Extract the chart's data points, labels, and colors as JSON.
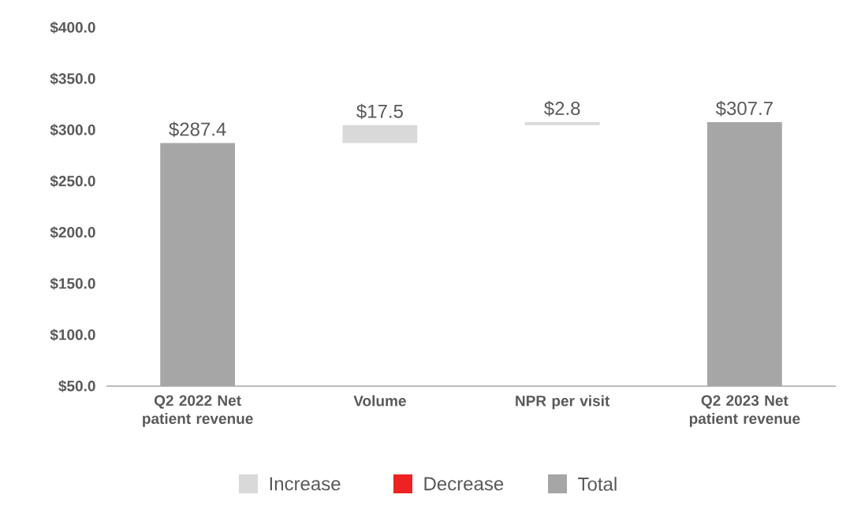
{
  "chart_data": {
    "type": "bar",
    "categories": [
      "Q2 2022 Net patient revenue",
      "Volume",
      "NPR per visit",
      "Q2 2023 Net patient revenue"
    ],
    "series": [
      {
        "name": "Increase",
        "color": "#d9d9d9",
        "base": [
          null,
          287.4,
          304.9,
          null
        ],
        "values": [
          null,
          17.5,
          2.8,
          null
        ],
        "value_labels": [
          null,
          "$17.5",
          "$2.8",
          null
        ]
      },
      {
        "name": "Decrease",
        "color": "#ee2222",
        "values": [
          null,
          null,
          null,
          null
        ]
      },
      {
        "name": "Total",
        "color": "#a6a6a6",
        "values": [
          287.4,
          null,
          null,
          307.7
        ],
        "value_labels": [
          "$287.4",
          null,
          null,
          "$307.7"
        ]
      }
    ],
    "ylim": [
      50,
      400
    ],
    "yticks": [
      {
        "value": 50,
        "label": "$50.0"
      },
      {
        "value": 100,
        "label": "$100.0"
      },
      {
        "value": 150,
        "label": "$150.0"
      },
      {
        "value": 200,
        "label": "$200.0"
      },
      {
        "value": 250,
        "label": "$250.0"
      },
      {
        "value": 300,
        "label": "$300.0"
      },
      {
        "value": 350,
        "label": "$350.0"
      },
      {
        "value": 400,
        "label": "$400.0"
      }
    ],
    "legend": "bottom"
  }
}
